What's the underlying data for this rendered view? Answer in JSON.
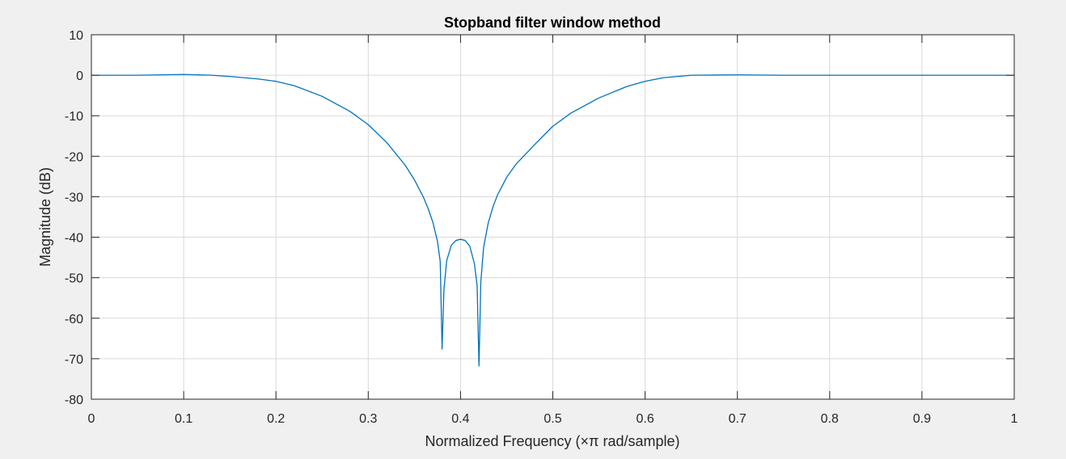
{
  "chart_data": {
    "type": "line",
    "title": "Stopband filter window method",
    "xlabel": "Normalized Frequency  (×π rad/sample)",
    "ylabel": "Magnitude (dB)",
    "xlim": [
      0,
      1
    ],
    "ylim": [
      -80,
      10
    ],
    "xticks": [
      0,
      0.1,
      0.2,
      0.3,
      0.4,
      0.5,
      0.6,
      0.7,
      0.8,
      0.9,
      1
    ],
    "xtick_labels": [
      "0",
      "0.1",
      "0.2",
      "0.3",
      "0.4",
      "0.5",
      "0.6",
      "0.7",
      "0.8",
      "0.9",
      "1"
    ],
    "yticks": [
      10,
      0,
      -10,
      -20,
      -30,
      -40,
      -50,
      -60,
      -70,
      -80
    ],
    "ytick_labels": [
      "10",
      "0",
      "-10",
      "-20",
      "-30",
      "-40",
      "-50",
      "-60",
      "-70",
      "-80"
    ],
    "grid": true,
    "line_color": "#0072bd",
    "series": [
      {
        "x": [
          0,
          0.05,
          0.1,
          0.13,
          0.15,
          0.18,
          0.2,
          0.22,
          0.25,
          0.28,
          0.3,
          0.32,
          0.34,
          0.35,
          0.36,
          0.365,
          0.37,
          0.375,
          0.378,
          0.38,
          0.382,
          0.385,
          0.39,
          0.395,
          0.4,
          0.405,
          0.41,
          0.415,
          0.418,
          0.42,
          0.422,
          0.425,
          0.43,
          0.435,
          0.44,
          0.45,
          0.46,
          0.48,
          0.5,
          0.52,
          0.55,
          0.58,
          0.6,
          0.62,
          0.65,
          0.7,
          0.75,
          0.8,
          0.9,
          1
        ],
        "y": [
          0,
          0,
          0.2,
          0,
          -0.3,
          -0.9,
          -1.5,
          -2.6,
          -5.2,
          -8.9,
          -12.2,
          -16.6,
          -22.2,
          -25.8,
          -30.2,
          -33.0,
          -36.3,
          -41.0,
          -46.0,
          -67.6,
          -53.0,
          -45.8,
          -42.0,
          -40.8,
          -40.5,
          -40.8,
          -42.2,
          -46.5,
          -52.0,
          -71.8,
          -51.0,
          -42.5,
          -36.5,
          -32.6,
          -29.6,
          -25.2,
          -22.0,
          -17.2,
          -12.6,
          -9.3,
          -5.6,
          -2.8,
          -1.5,
          -0.6,
          0,
          0.1,
          0,
          0,
          0,
          0
        ]
      }
    ]
  }
}
